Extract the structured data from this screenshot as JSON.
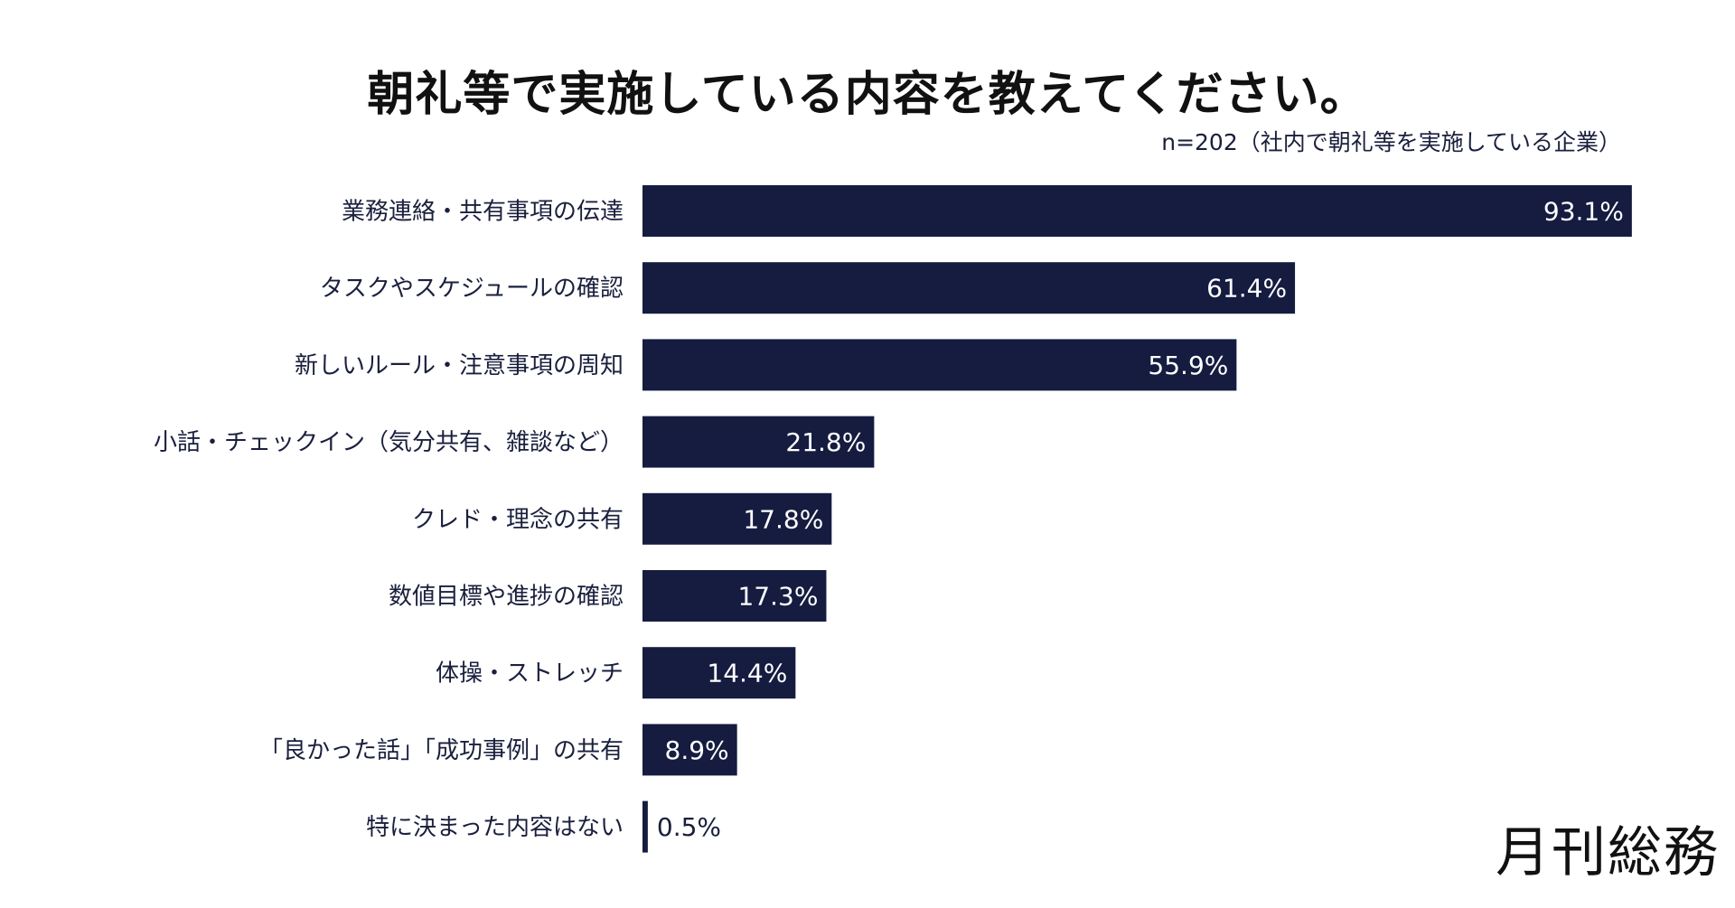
{
  "chart_data": {
    "type": "bar",
    "orientation": "horizontal",
    "title": "朝礼等で実施している内容を教えてください。",
    "subtitle": "n=202（社内で朝礼等を実施している企業）",
    "categories": [
      "業務連絡・共有事項の伝達",
      "タスクやスケジュールの確認",
      "新しいルール・注意事項の周知",
      "小話・チェックイン（気分共有、雑談など）",
      "クレド・理念の共有",
      "数値目標や進捗の確認",
      "体操・ストレッチ",
      "「良かった話」「成功事例」の共有",
      "特に決まった内容はない"
    ],
    "values": [
      93.1,
      61.4,
      55.9,
      21.8,
      17.8,
      17.3,
      14.4,
      8.9,
      0.5
    ],
    "value_labels": [
      "93.1%",
      "61.4%",
      "55.9%",
      "21.8%",
      "17.8%",
      "17.3%",
      "14.4%",
      "8.9%",
      "0.5%"
    ],
    "unit": "%",
    "bar_color": "#151c40",
    "grid": false
  },
  "logo": "月刊総務"
}
